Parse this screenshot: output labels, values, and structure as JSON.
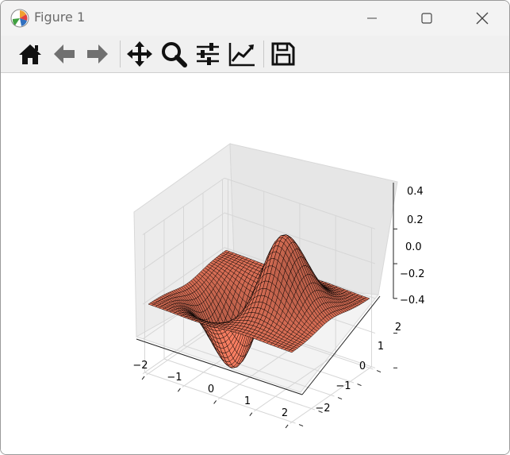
{
  "window": {
    "title": "Figure 1"
  },
  "toolbar": {
    "buttons": [
      {
        "name": "home-icon",
        "label": "Home"
      },
      {
        "name": "back-icon",
        "label": "Back"
      },
      {
        "name": "forward-icon",
        "label": "Forward"
      },
      {
        "name": "pan-icon",
        "label": "Pan"
      },
      {
        "name": "zoom-icon",
        "label": "Zoom"
      },
      {
        "name": "subplots-icon",
        "label": "Configure subplots"
      },
      {
        "name": "edit-axis-icon",
        "label": "Edit axis"
      },
      {
        "name": "save-icon",
        "label": "Save"
      }
    ]
  },
  "chart_data": {
    "type": "surface",
    "x_ticks": [
      "−2",
      "−1",
      "0",
      "1",
      "2"
    ],
    "y_ticks": [
      "−2",
      "−1",
      "0",
      "1",
      "2"
    ],
    "z_ticks": [
      "−0.4",
      "−0.2",
      "0.0",
      "0.2",
      "0.4"
    ],
    "xlim": [
      -2,
      2
    ],
    "ylim": [
      -2,
      2
    ],
    "zlim": [
      -0.4,
      0.4
    ],
    "surface_color": "#f07a5e",
    "edge_color": "#000000"
  }
}
